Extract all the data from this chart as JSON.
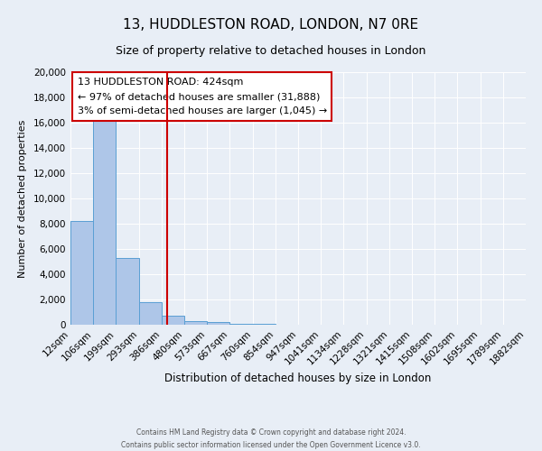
{
  "title": "13, HUDDLESTON ROAD, LONDON, N7 0RE",
  "subtitle": "Size of property relative to detached houses in London",
  "xlabel": "Distribution of detached houses by size in London",
  "ylabel": "Number of detached properties",
  "bin_labels": [
    "12sqm",
    "106sqm",
    "199sqm",
    "293sqm",
    "386sqm",
    "480sqm",
    "573sqm",
    "667sqm",
    "760sqm",
    "854sqm",
    "947sqm",
    "1041sqm",
    "1134sqm",
    "1228sqm",
    "1321sqm",
    "1415sqm",
    "1508sqm",
    "1602sqm",
    "1695sqm",
    "1789sqm",
    "1882sqm"
  ],
  "bar_heights": [
    8200,
    16500,
    5300,
    1800,
    700,
    300,
    200,
    100,
    100,
    0,
    0,
    0,
    0,
    0,
    0,
    0,
    0,
    0,
    0,
    0
  ],
  "bar_color": "#aec6e8",
  "bar_edge_color": "#5a9fd4",
  "property_line_x": 4.25,
  "property_line_color": "#cc0000",
  "annotation_title": "13 HUDDLESTON ROAD: 424sqm",
  "annotation_line1": "← 97% of detached houses are smaller (31,888)",
  "annotation_line2": "3% of semi-detached houses are larger (1,045) →",
  "annotation_box_color": "#ffffff",
  "annotation_box_edge": "#cc0000",
  "ylim": [
    0,
    20000
  ],
  "yticks": [
    0,
    2000,
    4000,
    6000,
    8000,
    10000,
    12000,
    14000,
    16000,
    18000,
    20000
  ],
  "background_color": "#e8eef6",
  "footer1": "Contains HM Land Registry data © Crown copyright and database right 2024.",
  "footer2": "Contains public sector information licensed under the Open Government Licence v3.0."
}
